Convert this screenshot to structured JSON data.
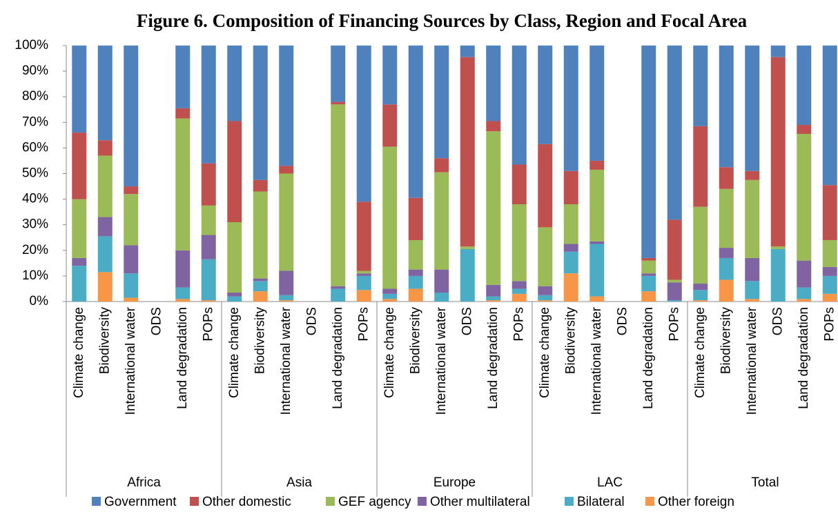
{
  "chart_data": {
    "type": "stacked_bar",
    "title": "Figure 6. Composition of Financing Sources by Class, Region and Focal Area",
    "groups": [
      {
        "name": "Africa",
        "categories": [
          "Climate change",
          "Biodiversity",
          "International water",
          "ODS",
          "Land degradation",
          "POPs"
        ]
      },
      {
        "name": "Asia",
        "categories": [
          "Climate change",
          "Biodiversity",
          "International water",
          "ODS",
          "Land degradation",
          "POPs"
        ]
      },
      {
        "name": "Europe",
        "categories": [
          "Climate change",
          "Biodiversity",
          "International water",
          "ODS",
          "Land degradation",
          "POPs"
        ]
      },
      {
        "name": "LAC",
        "categories": [
          "Climate change",
          "Biodiversity",
          "International water",
          "ODS",
          "Land degradation",
          "POPs"
        ]
      },
      {
        "name": "Total",
        "categories": [
          "Climate change",
          "Biodiversity",
          "International water",
          "ODS",
          "Land degradation",
          "POPs"
        ]
      }
    ],
    "series": [
      {
        "name": "Government",
        "color": "#4f81bd",
        "values": [
          34,
          37,
          55,
          null,
          24.5,
          46,
          29.5,
          52.5,
          47,
          null,
          22,
          61,
          23,
          59.5,
          44,
          4.5,
          29.5,
          46.5,
          38.5,
          49,
          45,
          null,
          83,
          68,
          31.5,
          47.5,
          49,
          4.5,
          31,
          54.5
        ]
      },
      {
        "name": "Other domestic",
        "color": "#c0504d",
        "values": [
          26,
          6,
          3,
          null,
          4,
          16.5,
          39.5,
          4.5,
          3,
          null,
          1,
          27,
          16.5,
          16.5,
          5.5,
          74,
          4,
          15.5,
          32.5,
          13,
          3.5,
          null,
          1,
          23.5,
          31.5,
          8.5,
          3.5,
          74,
          3.5,
          21.5
        ]
      },
      {
        "name": "GEF agency",
        "color": "#9bbb59",
        "values": [
          23,
          24,
          20,
          null,
          51.5,
          11.5,
          27.5,
          34,
          38,
          null,
          71,
          1,
          55.5,
          11.5,
          38,
          1,
          60,
          30,
          23,
          15.5,
          28,
          null,
          5,
          1,
          30,
          23,
          30.5,
          1,
          49.5,
          10.5
        ]
      },
      {
        "name": "Other multilateral",
        "color": "#8064a2",
        "values": [
          3,
          7.5,
          11,
          null,
          14.5,
          9.5,
          1.5,
          1,
          9.5,
          null,
          1,
          1,
          2,
          2.5,
          9,
          0,
          4.5,
          3,
          3.5,
          3,
          1,
          null,
          1,
          7,
          2.5,
          4,
          9,
          0,
          10.5,
          3.5
        ]
      },
      {
        "name": "Bilateral",
        "color": "#4bacc6",
        "values": [
          14,
          14,
          9.5,
          null,
          4.5,
          16,
          2,
          4,
          2,
          null,
          5,
          5.5,
          2,
          5,
          3.5,
          20.5,
          1.5,
          2,
          2,
          8.5,
          20.5,
          null,
          6,
          0.5,
          4,
          8.5,
          7,
          20.5,
          4.5,
          7
        ]
      },
      {
        "name": "Other foreign",
        "color": "#f79646",
        "values": [
          0,
          11.5,
          1.5,
          null,
          1,
          0.5,
          0,
          4,
          0.5,
          null,
          0,
          4.5,
          1,
          5,
          0,
          0,
          0.5,
          3,
          0.5,
          11,
          2,
          null,
          4,
          0,
          0.5,
          8.5,
          1,
          0,
          1,
          3
        ]
      }
    ],
    "ylim": [
      0,
      100
    ],
    "yticks": [
      {
        "value": 0,
        "label": "0%"
      },
      {
        "value": 10,
        "label": "10%"
      },
      {
        "value": 20,
        "label": "20%"
      },
      {
        "value": 30,
        "label": "30%"
      },
      {
        "value": 40,
        "label": "40%"
      },
      {
        "value": 50,
        "label": "50%"
      },
      {
        "value": 60,
        "label": "60%"
      },
      {
        "value": 70,
        "label": "70%"
      },
      {
        "value": 80,
        "label": "80%"
      },
      {
        "value": 90,
        "label": "90%"
      },
      {
        "value": 100,
        "label": "100%"
      }
    ],
    "legend": "bottom"
  }
}
